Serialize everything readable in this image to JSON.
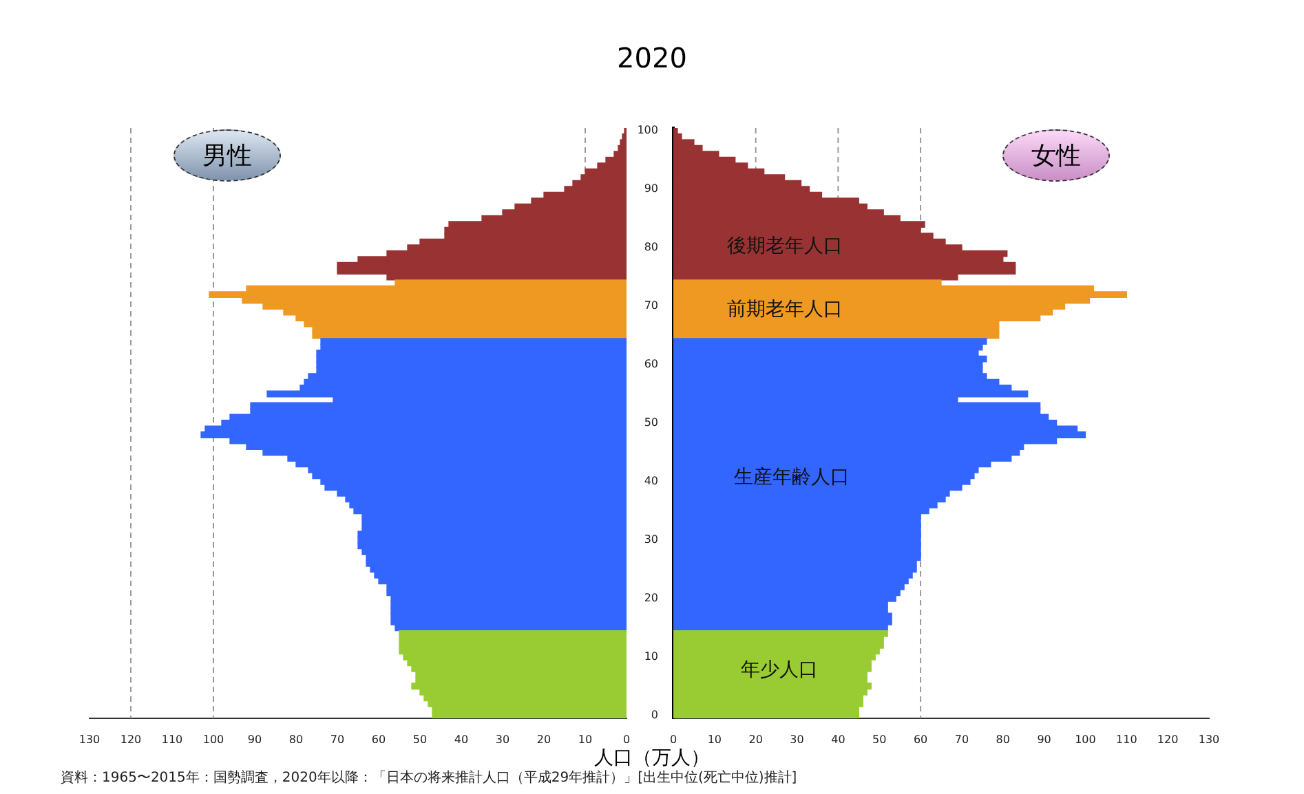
{
  "chart_data": [
    {
      "type": "bar",
      "orientation": "horizontal",
      "title": "2020",
      "xlabel": "人口（万人）",
      "annotations": [
        "男性",
        "資料：1965〜2015年：国勢調査，2020年以降：「日本の将来推計人口（平成29年推計）」[出生中位(死亡中位)推計]"
      ],
      "categories": [
        "100",
        null,
        null,
        null,
        null,
        null,
        null,
        null,
        null,
        null,
        "90",
        null,
        null,
        null,
        null,
        null,
        null,
        null,
        null,
        null,
        "80",
        null,
        null,
        null,
        null,
        null,
        null,
        null,
        null,
        null,
        "70",
        null,
        null,
        null,
        null,
        null,
        null,
        null,
        null,
        null,
        "60",
        null,
        null,
        null,
        null,
        null,
        null,
        null,
        null,
        null,
        "50",
        null,
        null,
        null,
        null,
        null,
        null,
        null,
        null,
        null,
        "40",
        null,
        null,
        null,
        null,
        null,
        null,
        null,
        null,
        null,
        "30",
        null,
        null,
        null,
        null,
        null,
        null,
        null,
        null,
        null,
        "20",
        null,
        null,
        null,
        null,
        null,
        null,
        null,
        null,
        null,
        "10",
        null,
        null,
        null,
        null,
        null,
        null,
        null,
        null,
        null,
        "0"
      ],
      "values": [
        0.5,
        1,
        1.5,
        2,
        3,
        5,
        7,
        10,
        11,
        13,
        15,
        20,
        23,
        27,
        30,
        35,
        43,
        44,
        44,
        50,
        53,
        58,
        65,
        70,
        70,
        58,
        56,
        92,
        101,
        93,
        88,
        83,
        80,
        78,
        76,
        76,
        74,
        74,
        75,
        75,
        75,
        75,
        77,
        78,
        79,
        87,
        71,
        91,
        91,
        96,
        98,
        102,
        103,
        96,
        92,
        88,
        82,
        80,
        77,
        76,
        74,
        73,
        70,
        68,
        67,
        66,
        64,
        64,
        64,
        65,
        65,
        65,
        64,
        63,
        63,
        62,
        61,
        60,
        58,
        58,
        57,
        57,
        57,
        57,
        57,
        56,
        55,
        55,
        55,
        55,
        54,
        53,
        52,
        51,
        51,
        52,
        50,
        49,
        48,
        47,
        47
      ],
      "colors": [
        "#993333",
        "#993333",
        "#993333",
        "#993333",
        "#993333",
        "#993333",
        "#993333",
        "#993333",
        "#993333",
        "#993333",
        "#993333",
        "#993333",
        "#993333",
        "#993333",
        "#993333",
        "#993333",
        "#993333",
        "#993333",
        "#993333",
        "#993333",
        "#993333",
        "#993333",
        "#993333",
        "#993333",
        "#993333",
        "#993333",
        "#ee9922",
        "#ee9922",
        "#ee9922",
        "#ee9922",
        "#ee9922",
        "#ee9922",
        "#ee9922",
        "#ee9922",
        "#ee9922",
        "#ee9922",
        "#3366ff",
        "#3366ff",
        "#3366ff",
        "#3366ff",
        "#3366ff",
        "#3366ff",
        "#3366ff",
        "#3366ff",
        "#3366ff",
        "#3366ff",
        "#3366ff",
        "#3366ff",
        "#3366ff",
        "#3366ff",
        "#3366ff",
        "#3366ff",
        "#3366ff",
        "#3366ff",
        "#3366ff",
        "#3366ff",
        "#3366ff",
        "#3366ff",
        "#3366ff",
        "#3366ff",
        "#3366ff",
        "#3366ff",
        "#3366ff",
        "#3366ff",
        "#3366ff",
        "#3366ff",
        "#3366ff",
        "#3366ff",
        "#3366ff",
        "#3366ff",
        "#3366ff",
        "#3366ff",
        "#3366ff",
        "#3366ff",
        "#3366ff",
        "#3366ff",
        "#3366ff",
        "#3366ff",
        "#3366ff",
        "#3366ff",
        "#3366ff",
        "#3366ff",
        "#3366ff",
        "#3366ff",
        "#3366ff",
        "#3366ff",
        "#99cc33",
        "#99cc33",
        "#99cc33",
        "#99cc33",
        "#99cc33",
        "#99cc33",
        "#99cc33",
        "#99cc33",
        "#99cc33",
        "#99cc33",
        "#99cc33",
        "#99cc33",
        "#99cc33",
        "#99cc33",
        "#99cc33"
      ],
      "xlim": [
        130,
        0
      ],
      "xticks": [
        0,
        10,
        20,
        30,
        40,
        50,
        60,
        70,
        80,
        90,
        100,
        110,
        120,
        130
      ],
      "tick_labels": "x",
      "ref_lines": [
        {
          "axis": "x",
          "value": 120,
          "color": "#999999",
          "line_style": "dashed"
        },
        {
          "axis": "x",
          "value": 100,
          "color": "#999999",
          "line_style": "dashed"
        },
        {
          "axis": "x",
          "value": 10,
          "color": "#999999",
          "line_style": "dashed"
        }
      ]
    },
    {
      "type": "bar",
      "orientation": "horizontal",
      "annotations": [
        "女性",
        "後期老年人口",
        "前期老年人口",
        "生産年齢人口",
        "年少人口"
      ],
      "categories": [
        "100",
        null,
        null,
        null,
        null,
        null,
        null,
        null,
        null,
        null,
        "90",
        null,
        null,
        null,
        null,
        null,
        null,
        null,
        null,
        null,
        "80",
        null,
        null,
        null,
        null,
        null,
        null,
        null,
        null,
        null,
        "70",
        null,
        null,
        null,
        null,
        null,
        null,
        null,
        null,
        null,
        "60",
        null,
        null,
        null,
        null,
        null,
        null,
        null,
        null,
        null,
        "50",
        null,
        null,
        null,
        null,
        null,
        null,
        null,
        null,
        null,
        "40",
        null,
        null,
        null,
        null,
        null,
        null,
        null,
        null,
        null,
        "30",
        null,
        null,
        null,
        null,
        null,
        null,
        null,
        null,
        null,
        "20",
        null,
        null,
        null,
        null,
        null,
        null,
        null,
        null,
        null,
        "10",
        null,
        null,
        null,
        null,
        null,
        null,
        null,
        null,
        null,
        "0"
      ],
      "values": [
        1,
        2,
        5,
        7,
        11,
        15,
        18,
        22,
        27,
        31,
        33,
        36,
        45,
        47,
        51,
        55,
        61,
        60,
        63,
        66,
        70,
        81,
        80,
        83,
        83,
        69,
        65,
        102,
        110,
        101,
        95,
        92,
        89,
        79,
        79,
        79,
        76,
        75,
        74,
        76,
        75,
        75,
        76,
        79,
        82,
        86,
        69,
        89,
        89,
        91,
        93,
        98,
        100,
        93,
        85,
        84,
        82,
        77,
        74,
        73,
        72,
        70,
        67,
        66,
        64,
        62,
        60,
        60,
        60,
        60,
        60,
        60,
        60,
        60,
        59,
        59,
        58,
        57,
        56,
        55,
        54,
        52,
        52,
        53,
        53,
        52,
        52,
        51,
        51,
        50,
        49,
        48,
        48,
        47,
        47,
        48,
        47,
        46,
        46,
        45,
        45
      ],
      "colors": [
        "#993333",
        "#993333",
        "#993333",
        "#993333",
        "#993333",
        "#993333",
        "#993333",
        "#993333",
        "#993333",
        "#993333",
        "#993333",
        "#993333",
        "#993333",
        "#993333",
        "#993333",
        "#993333",
        "#993333",
        "#993333",
        "#993333",
        "#993333",
        "#993333",
        "#993333",
        "#993333",
        "#993333",
        "#993333",
        "#993333",
        "#ee9922",
        "#ee9922",
        "#ee9922",
        "#ee9922",
        "#ee9922",
        "#ee9922",
        "#ee9922",
        "#ee9922",
        "#ee9922",
        "#ee9922",
        "#3366ff",
        "#3366ff",
        "#3366ff",
        "#3366ff",
        "#3366ff",
        "#3366ff",
        "#3366ff",
        "#3366ff",
        "#3366ff",
        "#3366ff",
        "#3366ff",
        "#3366ff",
        "#3366ff",
        "#3366ff",
        "#3366ff",
        "#3366ff",
        "#3366ff",
        "#3366ff",
        "#3366ff",
        "#3366ff",
        "#3366ff",
        "#3366ff",
        "#3366ff",
        "#3366ff",
        "#3366ff",
        "#3366ff",
        "#3366ff",
        "#3366ff",
        "#3366ff",
        "#3366ff",
        "#3366ff",
        "#3366ff",
        "#3366ff",
        "#3366ff",
        "#3366ff",
        "#3366ff",
        "#3366ff",
        "#3366ff",
        "#3366ff",
        "#3366ff",
        "#3366ff",
        "#3366ff",
        "#3366ff",
        "#3366ff",
        "#3366ff",
        "#3366ff",
        "#3366ff",
        "#3366ff",
        "#3366ff",
        "#3366ff",
        "#99cc33",
        "#99cc33",
        "#99cc33",
        "#99cc33",
        "#99cc33",
        "#99cc33",
        "#99cc33",
        "#99cc33",
        "#99cc33",
        "#99cc33",
        "#99cc33",
        "#99cc33",
        "#99cc33",
        "#99cc33",
        "#99cc33"
      ],
      "xlim": [
        0,
        130
      ],
      "xticks": [
        0,
        10,
        20,
        30,
        40,
        50,
        60,
        70,
        80,
        90,
        100,
        110,
        120,
        130
      ],
      "ref_lines": [
        {
          "axis": "x",
          "value": 20,
          "color": "#999999",
          "line_style": "dashed"
        },
        {
          "axis": "x",
          "value": 40,
          "color": "#999999",
          "line_style": "dashed"
        },
        {
          "axis": "x",
          "value": 60,
          "color": "#999999",
          "line_style": "dashed"
        }
      ]
    }
  ]
}
